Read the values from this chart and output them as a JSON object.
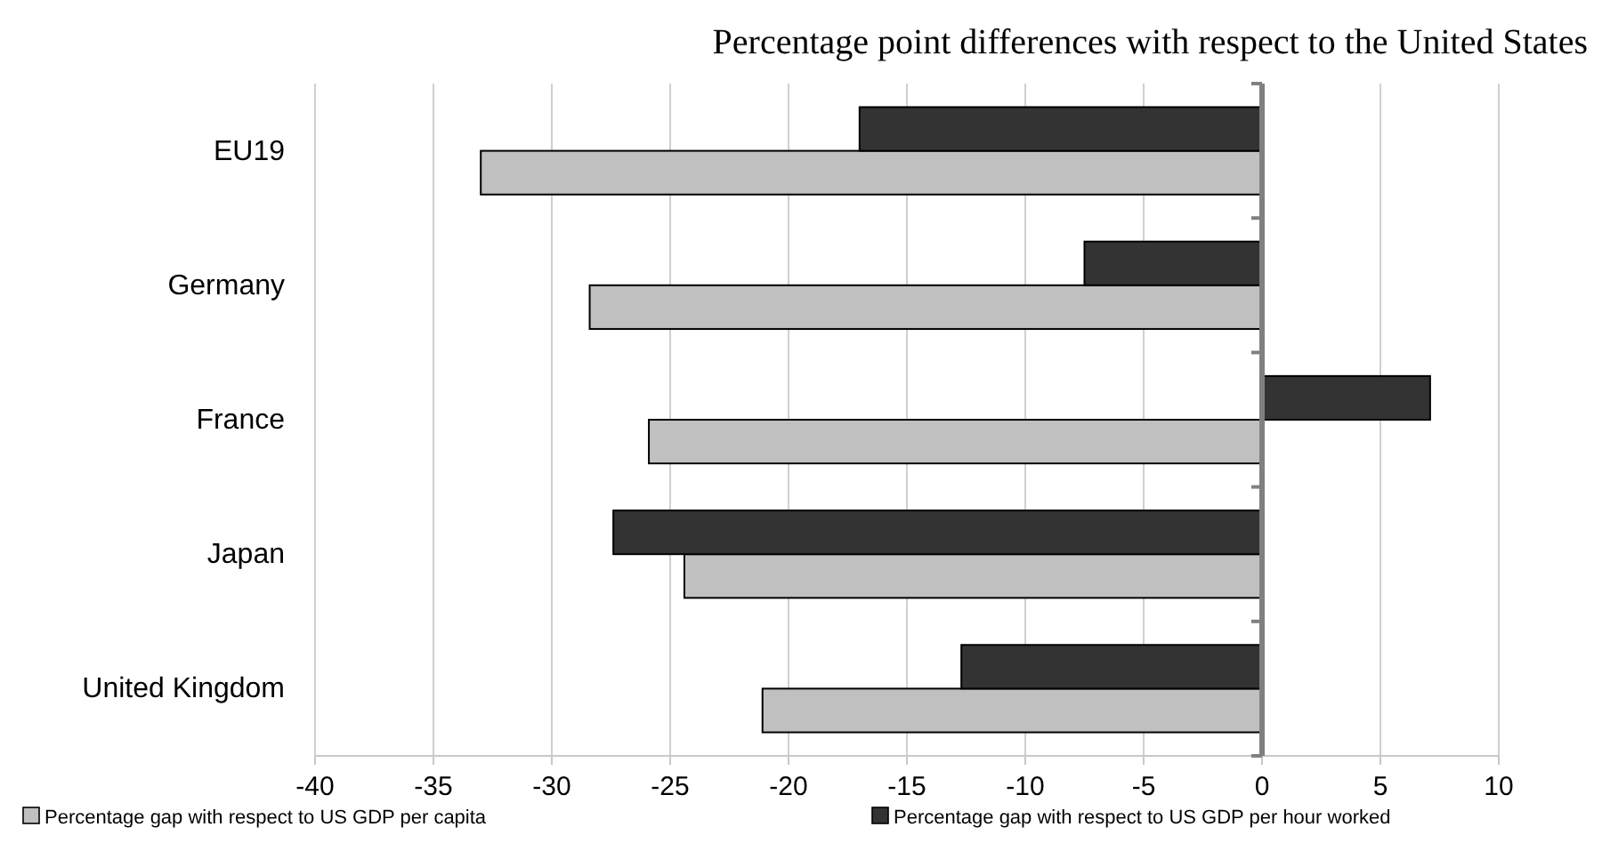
{
  "chart_data": {
    "type": "bar",
    "orientation": "horizontal",
    "title": "Percentage point differences with respect to the United States",
    "categories": [
      "EU19",
      "Germany",
      "France",
      "Japan",
      "United Kingdom"
    ],
    "series": [
      {
        "name": "Percentage gap with respect to US GDP per capita",
        "color": "#c0c0c0",
        "values": [
          -33.0,
          -28.4,
          -25.9,
          -24.4,
          -21.1
        ]
      },
      {
        "name": "Percentage gap with respect to US GDP per hour worked",
        "color": "#333333",
        "values": [
          -17.0,
          -7.5,
          7.1,
          -27.4,
          -12.7
        ]
      }
    ],
    "xlim": [
      -40,
      10
    ],
    "xticks": [
      -40,
      -35,
      -30,
      -25,
      -20,
      -15,
      -10,
      -5,
      0,
      5,
      10
    ],
    "grid": "x",
    "legend": "bottom"
  }
}
